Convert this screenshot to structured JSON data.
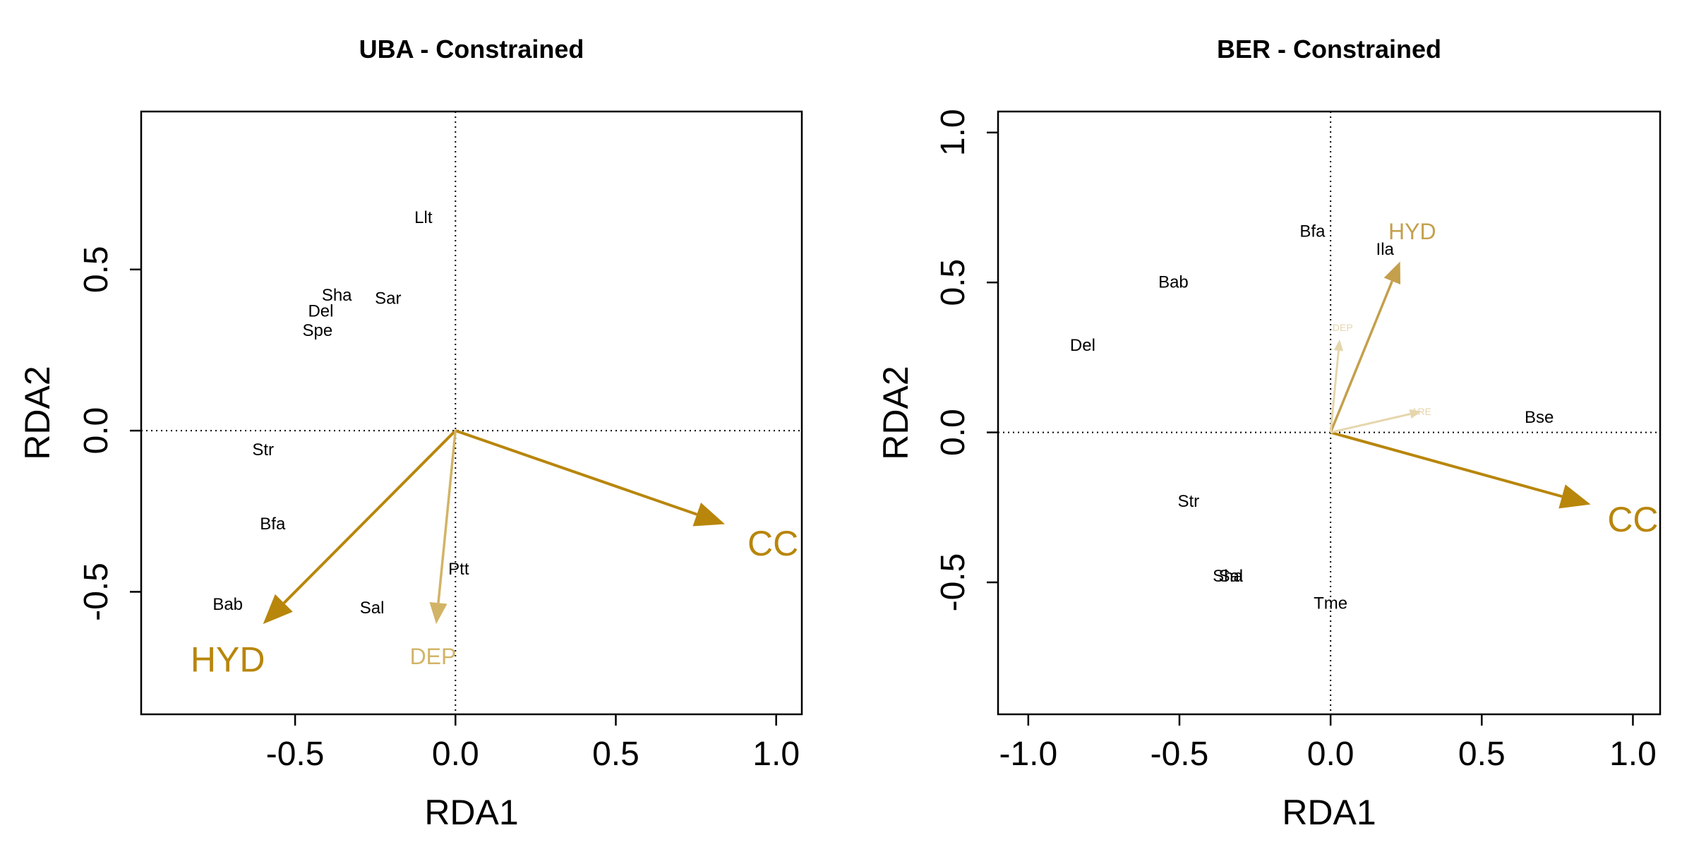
{
  "chart_data": [
    {
      "type": "scatter",
      "title": "UBA - Constrained",
      "xlabel": "RDA1",
      "ylabel": "RDA2",
      "xlim": [
        -0.98,
        1.08
      ],
      "ylim": [
        -0.88,
        0.99
      ],
      "xticks": [
        -0.5,
        0.0,
        0.5,
        1.0
      ],
      "xtick_labels": [
        "-0.5",
        "0.0",
        "0.5",
        "1.0"
      ],
      "yticks": [
        -0.5,
        0.0,
        0.5
      ],
      "ytick_labels": [
        "-0.5",
        "0.0",
        "0.5"
      ],
      "grid": false,
      "species": [
        {
          "label": "Llt",
          "x": -0.1,
          "y": 0.66
        },
        {
          "label": "Sha",
          "x": -0.37,
          "y": 0.42
        },
        {
          "label": "Sar",
          "x": -0.21,
          "y": 0.41
        },
        {
          "label": "Del",
          "x": -0.42,
          "y": 0.37
        },
        {
          "label": "Spe",
          "x": -0.43,
          "y": 0.31
        },
        {
          "label": "Str",
          "x": -0.6,
          "y": -0.06
        },
        {
          "label": "Bfa",
          "x": -0.57,
          "y": -0.29
        },
        {
          "label": "Ptt",
          "x": 0.01,
          "y": -0.43
        },
        {
          "label": "Bab",
          "x": -0.71,
          "y": -0.54
        },
        {
          "label": "Sal",
          "x": -0.26,
          "y": -0.55
        }
      ],
      "vectors": [
        {
          "label": "CC",
          "x": 0.84,
          "y": -0.29,
          "label_x": 0.99,
          "label_y": -0.35,
          "color": "#B8860B",
          "size": "large"
        },
        {
          "label": "HYD",
          "x": -0.6,
          "y": -0.6,
          "label_x": -0.71,
          "label_y": -0.71,
          "color": "#B8860B",
          "size": "large"
        },
        {
          "label": "DEP",
          "x": -0.06,
          "y": -0.6,
          "label_x": -0.07,
          "label_y": -0.7,
          "color": "#D2B467",
          "size": "medium"
        }
      ]
    },
    {
      "type": "scatter",
      "title": "BER - Constrained",
      "xlabel": "RDA1",
      "ylabel": "RDA2",
      "xlim": [
        -1.1,
        1.09
      ],
      "ylim": [
        -0.94,
        1.07
      ],
      "xticks": [
        -1.0,
        -0.5,
        0.0,
        0.5,
        1.0
      ],
      "xtick_labels": [
        "-1.0",
        "-0.5",
        "0.0",
        "0.5",
        "1.0"
      ],
      "yticks": [
        -0.5,
        0.0,
        0.5,
        1.0
      ],
      "ytick_labels": [
        "-0.5",
        "0.0",
        "0.5",
        "1.0"
      ],
      "grid": false,
      "species": [
        {
          "label": "Bfa",
          "x": -0.06,
          "y": 0.67
        },
        {
          "label": "Ila",
          "x": 0.18,
          "y": 0.61
        },
        {
          "label": "Bab",
          "x": -0.52,
          "y": 0.5
        },
        {
          "label": "Del",
          "x": -0.82,
          "y": 0.29
        },
        {
          "label": "Bse",
          "x": 0.69,
          "y": 0.05
        },
        {
          "label": "Str",
          "x": -0.47,
          "y": -0.23
        },
        {
          "label": "Sha",
          "x": -0.34,
          "y": -0.48
        },
        {
          "label": "Sal",
          "x": -0.33,
          "y": -0.48
        },
        {
          "label": "Tme",
          "x": 0.0,
          "y": -0.57
        }
      ],
      "vectors": [
        {
          "label": "CC",
          "x": 0.86,
          "y": -0.24,
          "label_x": 1.0,
          "label_y": -0.29,
          "color": "#B8860B",
          "size": "large"
        },
        {
          "label": "HYD",
          "x": 0.23,
          "y": 0.57,
          "label_x": 0.27,
          "label_y": 0.67,
          "color": "#C4A04C",
          "size": "medium"
        },
        {
          "label": "DEP",
          "x": 0.03,
          "y": 0.31,
          "label_x": 0.04,
          "label_y": 0.35,
          "color": "#E6D6AD",
          "size": "tiny"
        },
        {
          "label": "ARE",
          "x": 0.3,
          "y": 0.07,
          "label_x": 0.3,
          "label_y": 0.07,
          "color": "#E6D6AD",
          "size": "tiny"
        }
      ]
    }
  ]
}
